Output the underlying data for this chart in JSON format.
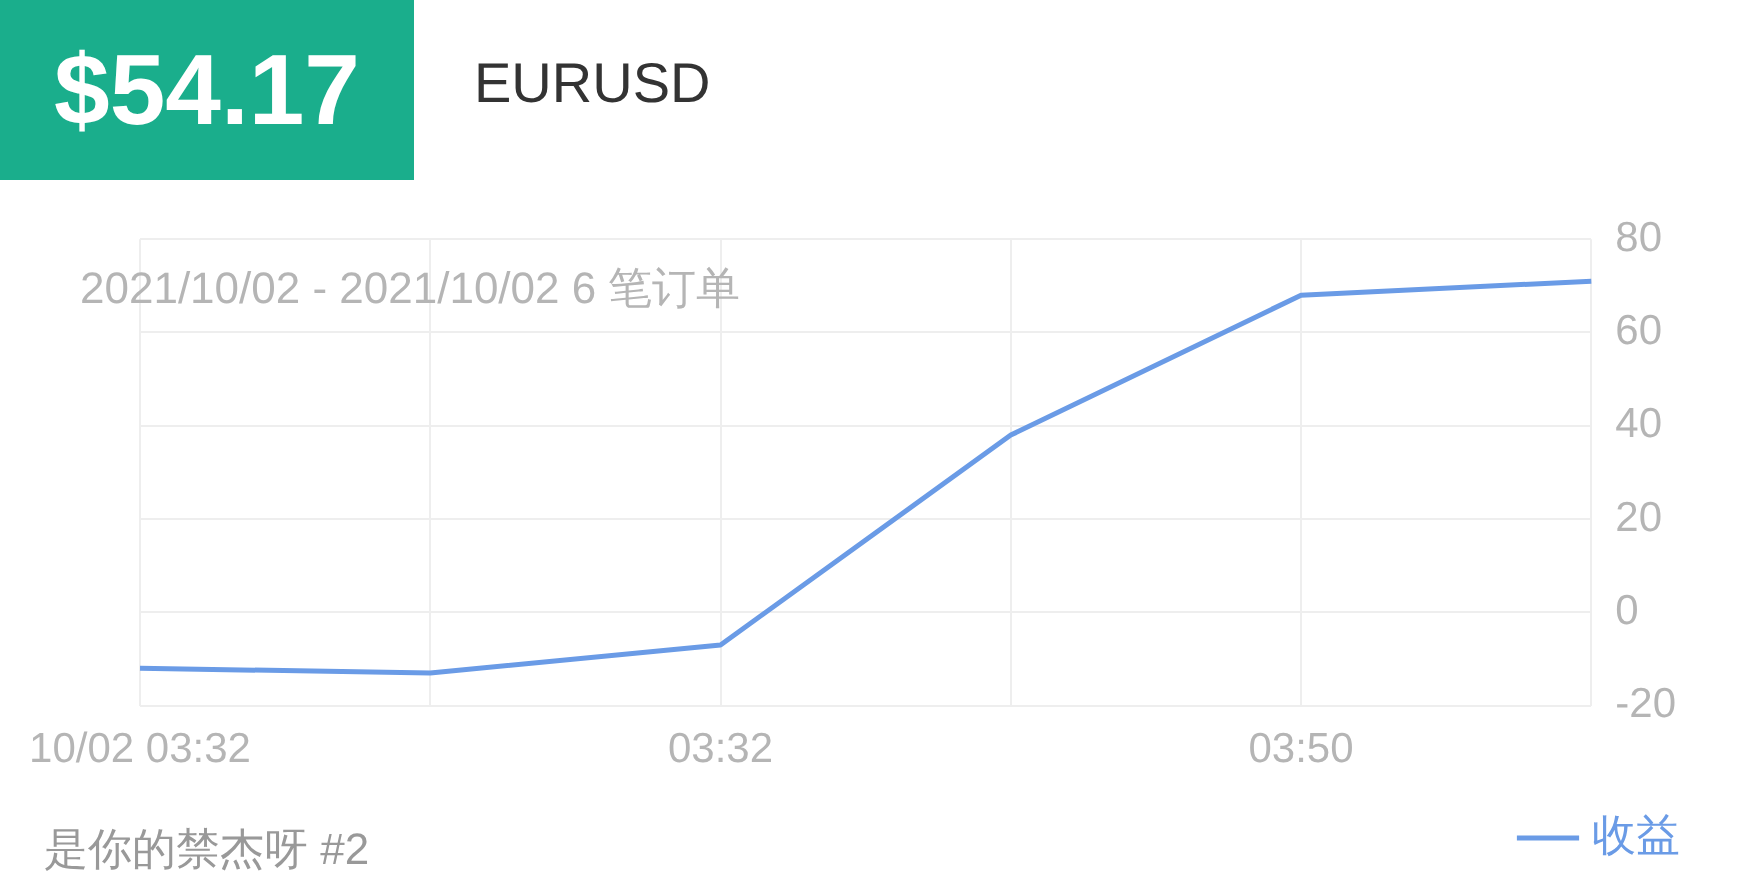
{
  "chart_data": {
    "type": "line",
    "title": "$54.17",
    "subtitle": "EURUSD",
    "categories": [
      "10/02 03:32",
      null,
      "03:32",
      null,
      "03:50",
      null
    ],
    "series": [
      {
        "name": "收益",
        "color": "#6a9be6",
        "values": [
          -12,
          -13,
          -7,
          38,
          68,
          71
        ]
      }
    ],
    "ylim": [
      -20,
      80
    ],
    "yticks": [
      -20,
      0,
      20,
      40,
      60,
      80
    ],
    "grid": true,
    "legend": "bottom right",
    "marker": "none",
    "annotations": [
      "2021/10/02 - 2021/10/02 6 笔订单",
      "是你的禁杰呀 #2"
    ]
  }
}
